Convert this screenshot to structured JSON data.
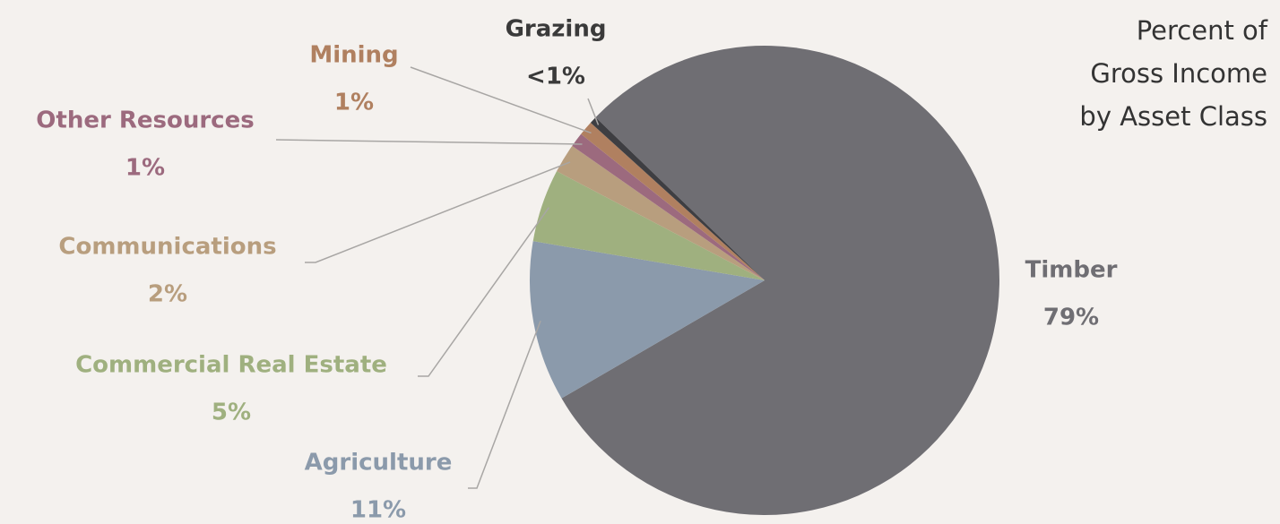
{
  "chart_data": {
    "type": "pie",
    "title": "Percent of Gross Income by Asset Class",
    "categories": [
      "Timber",
      "Agriculture",
      "Commercial Real Estate",
      "Communications",
      "Other Resources",
      "Mining",
      "Grazing"
    ],
    "values": [
      79,
      11,
      5,
      2,
      1,
      1,
      0.5
    ],
    "value_labels": [
      "79%",
      "11%",
      "5%",
      "2%",
      "1%",
      "1%",
      "<1%"
    ],
    "colors": [
      "#6f6e73",
      "#8b9aab",
      "#9fb07f",
      "#b89e7e",
      "#9c6a7e",
      "#b08060",
      "#3e3e42"
    ]
  }
}
